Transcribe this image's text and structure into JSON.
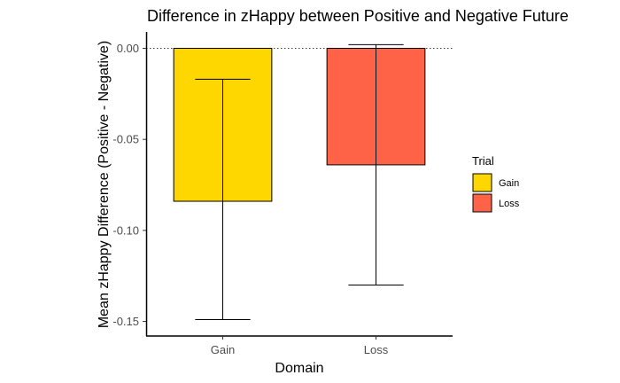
{
  "chart_data": {
    "type": "bar",
    "title": "Difference in zHappy between Positive and Negative Future",
    "xlabel": "Domain",
    "ylabel": "Mean zHappy Difference (Positive - Negative)",
    "categories": [
      "Gain",
      "Loss"
    ],
    "values": [
      -0.084,
      -0.064
    ],
    "error_low": [
      -0.149,
      -0.13
    ],
    "error_high": [
      -0.017,
      0.002
    ],
    "colors": [
      "#FFD700",
      "#FF6347"
    ],
    "ylim": [
      -0.158,
      0.009
    ],
    "yticks": [
      0.0,
      -0.05,
      -0.1,
      -0.15
    ],
    "ytick_labels": [
      "0.00",
      "-0.05",
      "-0.10",
      "-0.15"
    ],
    "reference_line": 0,
    "grid": false,
    "legend": {
      "title": "Trial",
      "position": "right",
      "entries": [
        {
          "label": "Gain",
          "color": "#FFD700"
        },
        {
          "label": "Loss",
          "color": "#FF6347"
        }
      ]
    }
  }
}
